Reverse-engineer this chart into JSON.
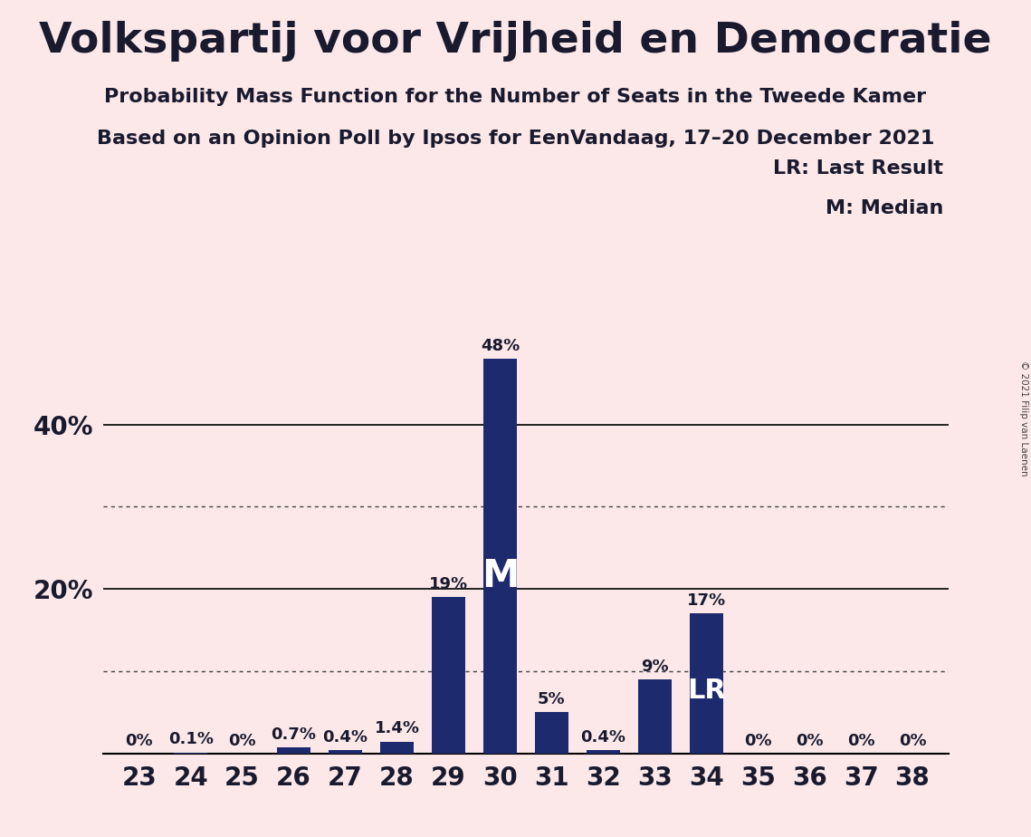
{
  "title": "Volkspartij voor Vrijheid en Democratie",
  "subtitle1": "Probability Mass Function for the Number of Seats in the Tweede Kamer",
  "subtitle2": "Based on an Opinion Poll by Ipsos for EenVandaag, 17–20 December 2021",
  "copyright": "© 2021 Filip van Laenen",
  "legend_lr": "LR: Last Result",
  "legend_m": "M: Median",
  "seats": [
    23,
    24,
    25,
    26,
    27,
    28,
    29,
    30,
    31,
    32,
    33,
    34,
    35,
    36,
    37,
    38
  ],
  "values": [
    0.0,
    0.1,
    0.0,
    0.7,
    0.4,
    1.4,
    19.0,
    48.0,
    5.0,
    0.4,
    9.0,
    17.0,
    0.0,
    0.0,
    0.0,
    0.0
  ],
  "labels": [
    "0%",
    "0.1%",
    "0%",
    "0.7%",
    "0.4%",
    "1.4%",
    "19%",
    "48%",
    "5%",
    "0.4%",
    "9%",
    "17%",
    "0%",
    "0%",
    "0%",
    "0%"
  ],
  "bar_color": "#1e2a6e",
  "background_color": "#fce8e8",
  "median_seat": 30,
  "lr_seat": 34,
  "ylim": [
    0,
    55
  ],
  "solid_gridlines": [
    20,
    40
  ],
  "dotted_gridlines": [
    10,
    30
  ],
  "bar_width": 0.65,
  "title_fontsize": 34,
  "subtitle_fontsize": 16,
  "tick_fontsize": 20,
  "label_fontsize": 13,
  "m_fontsize": 30,
  "lr_fontsize": 22,
  "legend_fontsize": 16
}
